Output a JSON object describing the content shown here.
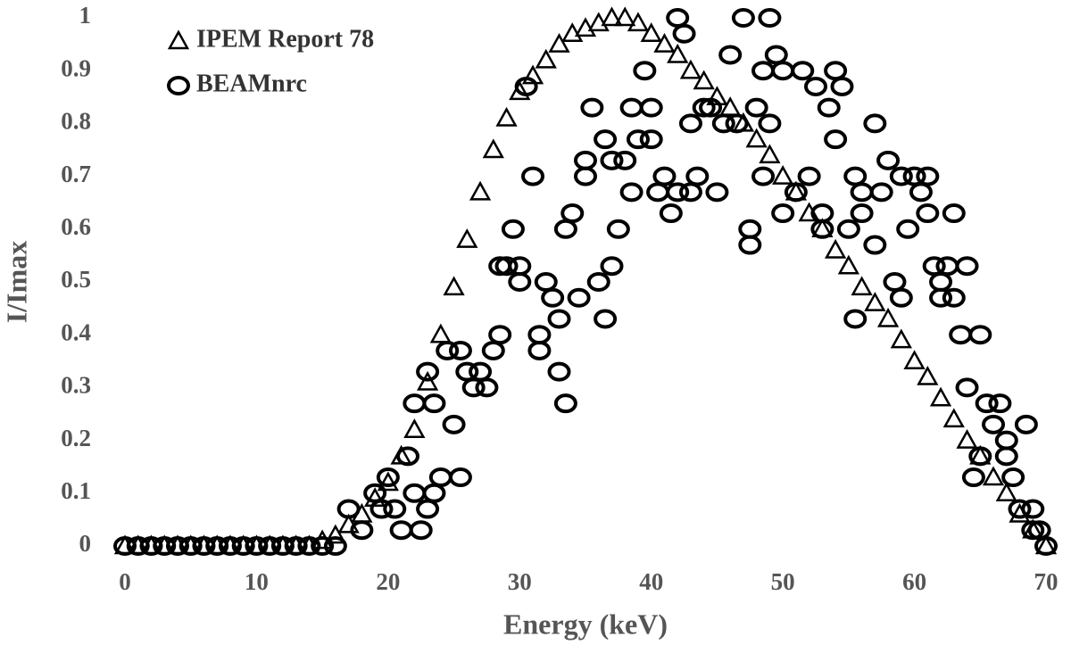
{
  "chart_data": {
    "type": "scatter",
    "xlabel": "Energy (keV)",
    "ylabel": "I/Imax",
    "xlim": [
      0,
      70
    ],
    "xticks": [
      0,
      10,
      20,
      30,
      40,
      50,
      60,
      70
    ],
    "ylim": [
      0,
      1
    ],
    "yticks": [
      0,
      0.1,
      0.2,
      0.3,
      0.4,
      0.5,
      0.6,
      0.7,
      0.8,
      0.9,
      1
    ],
    "legend": "upper left",
    "series": [
      {
        "name": "IPEM Report 78",
        "color": "#000000",
        "marker": "triangle",
        "x": [
          0,
          1,
          2,
          3,
          4,
          5,
          6,
          7,
          8,
          9,
          10,
          11,
          12,
          13,
          14,
          15,
          16,
          17,
          18,
          19,
          20,
          21,
          22,
          23,
          24,
          25,
          26,
          27,
          28,
          29,
          30,
          31,
          32,
          33,
          34,
          35,
          36,
          37,
          38,
          39,
          40,
          41,
          42,
          43,
          44,
          45,
          46,
          47,
          48,
          49,
          50,
          51,
          52,
          53,
          54,
          55,
          56,
          57,
          58,
          59,
          60,
          61,
          62,
          63,
          64,
          65,
          66,
          67,
          68,
          69,
          70
        ],
        "values": [
          0,
          0,
          0,
          0,
          0,
          0,
          0,
          0,
          0,
          0,
          0,
          0,
          0,
          0,
          0,
          0.01,
          0.02,
          0.04,
          0.06,
          0.09,
          0.12,
          0.17,
          0.22,
          0.31,
          0.4,
          0.49,
          0.58,
          0.67,
          0.75,
          0.81,
          0.86,
          0.89,
          0.92,
          0.95,
          0.97,
          0.98,
          0.99,
          1,
          1,
          0.99,
          0.97,
          0.95,
          0.93,
          0.9,
          0.88,
          0.85,
          0.83,
          0.8,
          0.77,
          0.74,
          0.7,
          0.67,
          0.63,
          0.6,
          0.56,
          0.53,
          0.49,
          0.46,
          0.43,
          0.39,
          0.35,
          0.32,
          0.28,
          0.24,
          0.2,
          0.17,
          0.13,
          0.1,
          0.06,
          0.03,
          0
        ]
      },
      {
        "name": "BEAMnrc",
        "color": "#000000",
        "marker": "circle",
        "x": [
          0,
          1,
          2,
          3,
          4,
          5,
          6,
          7,
          8,
          9,
          10,
          11,
          12,
          13,
          14,
          15,
          16,
          17,
          18,
          19,
          19.5,
          20,
          20.5,
          21,
          21.5,
          22,
          22,
          22.5,
          23,
          23,
          23.5,
          23.5,
          24,
          24.5,
          25,
          25.5,
          25.5,
          26,
          26.5,
          27,
          27.5,
          28,
          28.5,
          28.5,
          29,
          29.5,
          30,
          30,
          30.5,
          31,
          31.5,
          31.5,
          32,
          32.5,
          33,
          33,
          33.5,
          33.5,
          34,
          34.5,
          35,
          35,
          35.5,
          36,
          36.5,
          36.5,
          37,
          37,
          37.5,
          38,
          38.5,
          38.5,
          39,
          39.5,
          40,
          40,
          40.5,
          41,
          41.5,
          42,
          42,
          42.5,
          43,
          43,
          43.5,
          44,
          44.5,
          45,
          45.5,
          46,
          46.5,
          47,
          47.5,
          47.5,
          48,
          48.5,
          48.5,
          49,
          49,
          49.5,
          50,
          50,
          51,
          51.5,
          52,
          52.5,
          53,
          53,
          53.5,
          54,
          54,
          54.5,
          55,
          55.5,
          55.5,
          56,
          56,
          57,
          57,
          57.5,
          58,
          58.5,
          59,
          59,
          59.5,
          60,
          60.5,
          61,
          61,
          61.5,
          62,
          62,
          62.5,
          63,
          63,
          63.5,
          64,
          64,
          64.5,
          65,
          65,
          65.5,
          66,
          66.5,
          67,
          67,
          67.5,
          68,
          68.5,
          69,
          69,
          69.5,
          70
        ],
        "values": [
          0,
          0,
          0,
          0,
          0,
          0,
          0,
          0,
          0,
          0,
          0,
          0,
          0,
          0,
          0,
          0,
          0,
          0.07,
          0.03,
          0.1,
          0.07,
          0.13,
          0.07,
          0.03,
          0.17,
          0.1,
          0.27,
          0.03,
          0.07,
          0.33,
          0.1,
          0.27,
          0.13,
          0.37,
          0.23,
          0.13,
          0.37,
          0.33,
          0.3,
          0.33,
          0.3,
          0.37,
          0.4,
          0.53,
          0.53,
          0.6,
          0.53,
          0.5,
          0.87,
          0.7,
          0.37,
          0.4,
          0.5,
          0.47,
          0.43,
          0.33,
          0.6,
          0.27,
          0.63,
          0.47,
          0.73,
          0.7,
          0.83,
          0.5,
          0.77,
          0.43,
          0.53,
          0.73,
          0.6,
          0.73,
          0.83,
          0.67,
          0.77,
          0.9,
          0.77,
          0.83,
          0.67,
          0.7,
          0.63,
          0.67,
          1,
          0.97,
          0.67,
          0.8,
          0.7,
          0.83,
          0.83,
          0.67,
          0.8,
          0.93,
          0.8,
          1,
          0.57,
          0.6,
          0.83,
          0.7,
          0.9,
          1,
          0.8,
          0.93,
          0.9,
          0.63,
          0.67,
          0.9,
          0.7,
          0.87,
          0.6,
          0.63,
          0.83,
          0.9,
          0.77,
          0.87,
          0.6,
          0.43,
          0.7,
          0.67,
          0.63,
          0.8,
          0.57,
          0.67,
          0.73,
          0.5,
          0.7,
          0.47,
          0.6,
          0.7,
          0.67,
          0.7,
          0.63,
          0.53,
          0.5,
          0.47,
          0.53,
          0.63,
          0.47,
          0.4,
          0.53,
          0.3,
          0.13,
          0.4,
          0.17,
          0.27,
          0.23,
          0.27,
          0.2,
          0.17,
          0.13,
          0.07,
          0.23,
          0.07,
          0.03,
          0.03,
          0
        ]
      }
    ]
  }
}
